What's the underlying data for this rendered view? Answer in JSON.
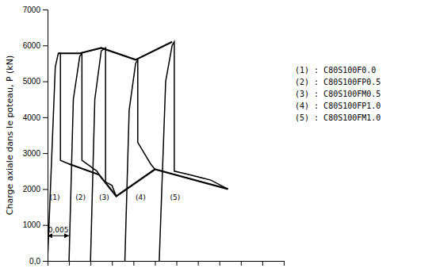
{
  "chart_data": {
    "type": "line",
    "ylabel": "Charge axiale dans le poteau, P (kN)",
    "xlim": [
      0,
      0.055
    ],
    "ylim": [
      0,
      7000
    ],
    "xticks": [
      0.005,
      0.01,
      0.015,
      0.02,
      0.025,
      0.03,
      0.035,
      0.04,
      0.045,
      0.05,
      0.055
    ],
    "yticks": [
      {
        "value": 0,
        "label": "0,0"
      },
      1000,
      2000,
      3000,
      4000,
      5000,
      6000,
      7000
    ],
    "tick_labels": "y",
    "color": "#000000",
    "legend": "right",
    "series": [
      {
        "name": "(1) : C80S100F0.0",
        "x": [
          0.0,
          0.0018,
          0.0025,
          0.003,
          0.003,
          0.005
        ],
        "values": [
          0,
          5400,
          5780,
          5780,
          2800,
          2700
        ]
      },
      {
        "name": "(2) : C80S100FP0.5",
        "x": [
          0.005,
          0.006,
          0.0075,
          0.008,
          0.008,
          0.0115,
          0.012
        ],
        "values": [
          0,
          4500,
          5700,
          5780,
          2800,
          2500,
          2400
        ]
      },
      {
        "name": "(3) : C80S100FM0.5",
        "x": [
          0.01,
          0.011,
          0.0125,
          0.0135,
          0.0135,
          0.015,
          0.0155,
          0.016
        ],
        "values": [
          0,
          4500,
          5850,
          5930,
          2200,
          2100,
          1950,
          1800
        ]
      },
      {
        "name": "(4) : C80S100FP1.0",
        "x": [
          0.018,
          0.019,
          0.0205,
          0.021,
          0.021,
          0.024,
          0.025
        ],
        "values": [
          0,
          4200,
          5500,
          5600,
          3300,
          2700,
          2550
        ]
      },
      {
        "name": "(5) : C80S100FM1.0",
        "x": [
          0.026,
          0.0275,
          0.029,
          0.0295,
          0.0295,
          0.033,
          0.038,
          0.042
        ],
        "values": [
          0,
          5000,
          6000,
          6100,
          2500,
          2400,
          2250,
          2000
        ]
      }
    ],
    "envelope_top": {
      "x": [
        0.0025,
        0.0075,
        0.0125,
        0.0205,
        0.029
      ],
      "values": [
        5780,
        5780,
        5930,
        5600,
        6100
      ]
    },
    "envelope_bottom": {
      "x": [
        0.005,
        0.012,
        0.016,
        0.025,
        0.042
      ],
      "values": [
        2700,
        2400,
        1800,
        2550,
        2000
      ]
    },
    "annotations": [
      {
        "text": "(1)",
        "x": 0.0005,
        "y": 1700
      },
      {
        "text": "(2)",
        "x": 0.0065,
        "y": 1700
      },
      {
        "text": "(3)",
        "x": 0.012,
        "y": 1700
      },
      {
        "text": "(4)",
        "x": 0.0205,
        "y": 1700
      },
      {
        "text": "(5)",
        "x": 0.0285,
        "y": 1700
      }
    ],
    "scale_bar": {
      "x": [
        0.0,
        0.005
      ],
      "y": 700,
      "text": "0,005"
    }
  }
}
